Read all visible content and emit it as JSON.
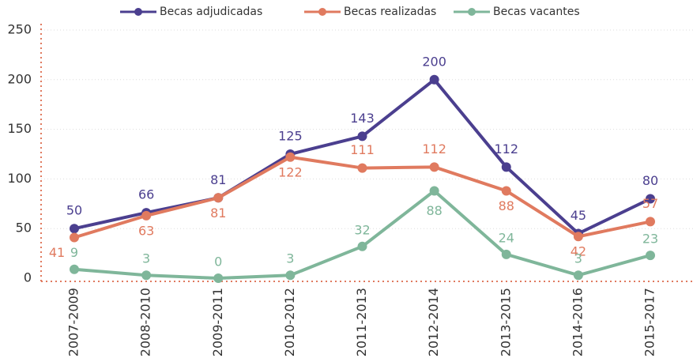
{
  "chart_data": {
    "type": "line",
    "categories": [
      "2007-2009",
      "2008-2010",
      "2009-2011",
      "2010-2012",
      "2011-2013",
      "2012-2014",
      "2013-2015",
      "2014-2016",
      "2015-2017"
    ],
    "series": [
      {
        "name": "Becas adjudicadas",
        "color": "#4b3f8f",
        "values": [
          50,
          66,
          81,
          125,
          143,
          200,
          112,
          45,
          80
        ]
      },
      {
        "name": "Becas realizadas",
        "color": "#e07a5f",
        "values": [
          41,
          63,
          81,
          122,
          111,
          112,
          88,
          42,
          57
        ]
      },
      {
        "name": "Becas vacantes",
        "color": "#7fb69a",
        "values": [
          9,
          3,
          0,
          3,
          32,
          88,
          24,
          3,
          23
        ]
      }
    ],
    "ylim": [
      0,
      250
    ],
    "yticks": [
      0,
      50,
      100,
      150,
      200,
      250
    ],
    "grid": true
  }
}
